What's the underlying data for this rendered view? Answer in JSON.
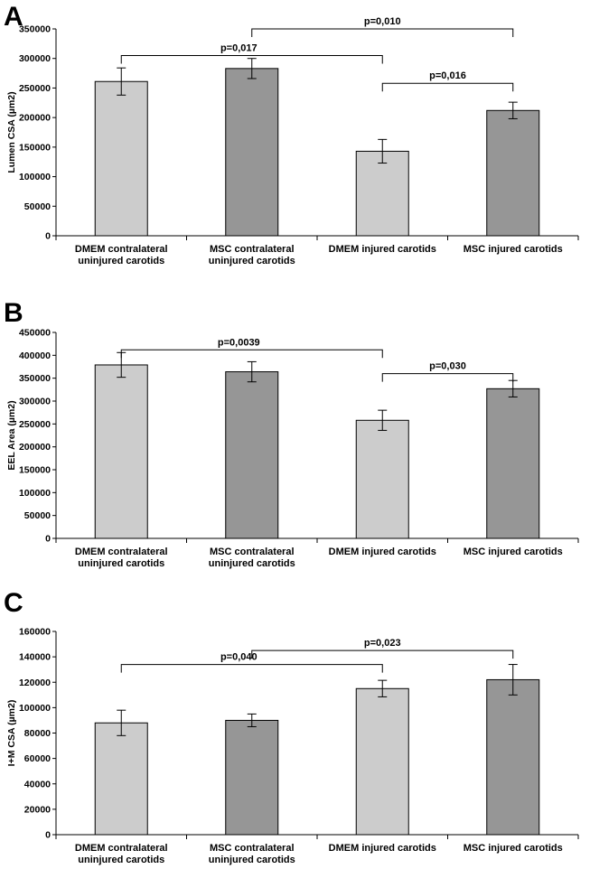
{
  "chart_data": [
    {
      "type": "bar",
      "panel_label": "A",
      "ylabel": "Lumen CSA (µm2)",
      "ylim": [
        0,
        350000
      ],
      "yticks": [
        0,
        50000,
        100000,
        150000,
        200000,
        250000,
        300000,
        350000
      ],
      "categories": [
        [
          "DMEM contralateral",
          "uninjured carotids"
        ],
        [
          "MSC contralateral",
          "uninjured carotids"
        ],
        [
          "DMEM injured carotids"
        ],
        [
          "MSC injured carotids"
        ]
      ],
      "values": [
        261000,
        283000,
        143000,
        212000
      ],
      "errors": [
        23000,
        17000,
        20000,
        14000
      ],
      "bar_colors": [
        "#cccccc",
        "#969696",
        "#cccccc",
        "#969696"
      ],
      "brackets": [
        {
          "from": 0,
          "to": 2,
          "label": "p=0,017",
          "level": 305000
        },
        {
          "from": 1,
          "to": 3,
          "label": "p=0,010",
          "level": 350000
        },
        {
          "from": 2,
          "to": 3,
          "label": "p=0,016",
          "level": 258000
        }
      ]
    },
    {
      "type": "bar",
      "panel_label": "B",
      "ylabel": "EEL Area (µm2)",
      "ylim": [
        0,
        450000
      ],
      "yticks": [
        0,
        50000,
        100000,
        150000,
        200000,
        250000,
        300000,
        350000,
        400000,
        450000
      ],
      "categories": [
        [
          "DMEM contralateral",
          "uninjured carotids"
        ],
        [
          "MSC contralateral",
          "uninjured carotids"
        ],
        [
          "DMEM injured carotids"
        ],
        [
          "MSC injured carotids"
        ]
      ],
      "values": [
        379000,
        364000,
        258000,
        327000
      ],
      "errors": [
        27000,
        22000,
        22000,
        18000
      ],
      "bar_colors": [
        "#cccccc",
        "#969696",
        "#cccccc",
        "#969696"
      ],
      "brackets": [
        {
          "from": 0,
          "to": 2,
          "label": "p=0,0039",
          "level": 412000
        },
        {
          "from": 2,
          "to": 3,
          "label": "p=0,030",
          "level": 360000
        }
      ]
    },
    {
      "type": "bar",
      "panel_label": "C",
      "ylabel": "I+M CSA (µm2)",
      "ylim": [
        0,
        160000
      ],
      "yticks": [
        0,
        20000,
        40000,
        60000,
        80000,
        100000,
        120000,
        140000,
        160000
      ],
      "categories": [
        [
          "DMEM contralateral",
          "uninjured carotids"
        ],
        [
          "MSC contralateral",
          "uninjured carotids"
        ],
        [
          "DMEM injured carotids"
        ],
        [
          "MSC injured carotids"
        ]
      ],
      "values": [
        88000,
        90000,
        115000,
        122000
      ],
      "errors": [
        10000,
        5000,
        6500,
        12000
      ],
      "bar_colors": [
        "#cccccc",
        "#969696",
        "#cccccc",
        "#969696"
      ],
      "brackets": [
        {
          "from": 0,
          "to": 2,
          "label": "p=0,040",
          "level": 134000
        },
        {
          "from": 1,
          "to": 3,
          "label": "p=0,023",
          "level": 145000
        }
      ]
    }
  ]
}
